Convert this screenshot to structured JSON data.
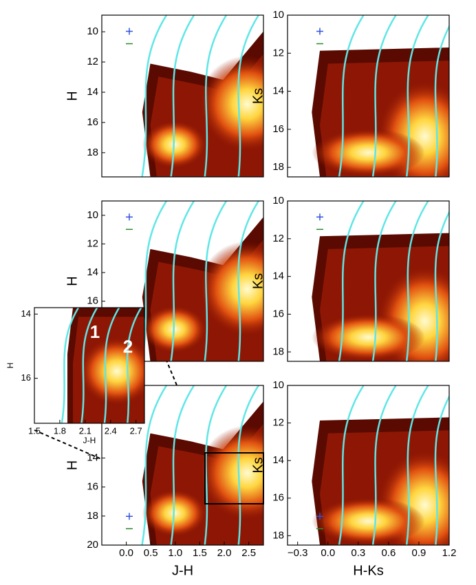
{
  "chart_data": [
    {
      "type": "heatmap",
      "ylabel": "H",
      "ylim": [
        8.9,
        19.6
      ],
      "yticks": [
        10,
        12,
        14,
        16,
        18
      ]
    },
    {
      "type": "heatmap",
      "ylabel": "Ks",
      "ylim": [
        10,
        18.5
      ],
      "yticks": [
        10,
        12,
        14,
        16,
        18
      ]
    },
    {
      "type": "heatmap",
      "ylabel": "H",
      "ylim": [
        9,
        20.2
      ],
      "yticks": [
        10,
        12,
        14,
        16
      ]
    },
    {
      "type": "heatmap",
      "ylabel": "Ks",
      "ylim": [
        10,
        18.5
      ],
      "yticks": [
        10,
        12,
        14,
        16,
        18
      ]
    },
    {
      "type": "heatmap",
      "xlabel": "J-H",
      "ylabel": "H",
      "xlim": [
        -0.5,
        2.8
      ],
      "ylim": [
        9,
        20
      ],
      "xticks": [
        {
          "value": 0,
          "label": "0.0"
        },
        0.5,
        {
          "value": 1,
          "label": "1.0"
        },
        1.5,
        {
          "value": 2,
          "label": "2.0"
        },
        2.5
      ],
      "yticks": [
        14,
        16,
        18,
        20
      ]
    },
    {
      "type": "heatmap",
      "xlabel": "H-Ks",
      "ylabel": "Ks",
      "xlim": [
        -0.4,
        1.2
      ],
      "ylim": [
        10,
        18.5
      ],
      "xticks": [
        {
          "value": -0.3,
          "label": "−0.3"
        },
        {
          "value": 0,
          "label": "0.0"
        },
        0.3,
        0.6,
        0.9,
        1.2
      ],
      "yticks": [
        10,
        12,
        14,
        16,
        18
      ]
    },
    {
      "type": "heatmap",
      "xlabel": "J-H",
      "ylabel": "H",
      "xlim": [
        1.5,
        2.8
      ],
      "ylim": [
        13.8,
        17.4
      ],
      "xticks": [
        1.5,
        1.8,
        2.1,
        2.4,
        2.7
      ],
      "yticks": [
        14,
        16
      ],
      "annotations": [
        "1",
        "2"
      ]
    }
  ]
}
